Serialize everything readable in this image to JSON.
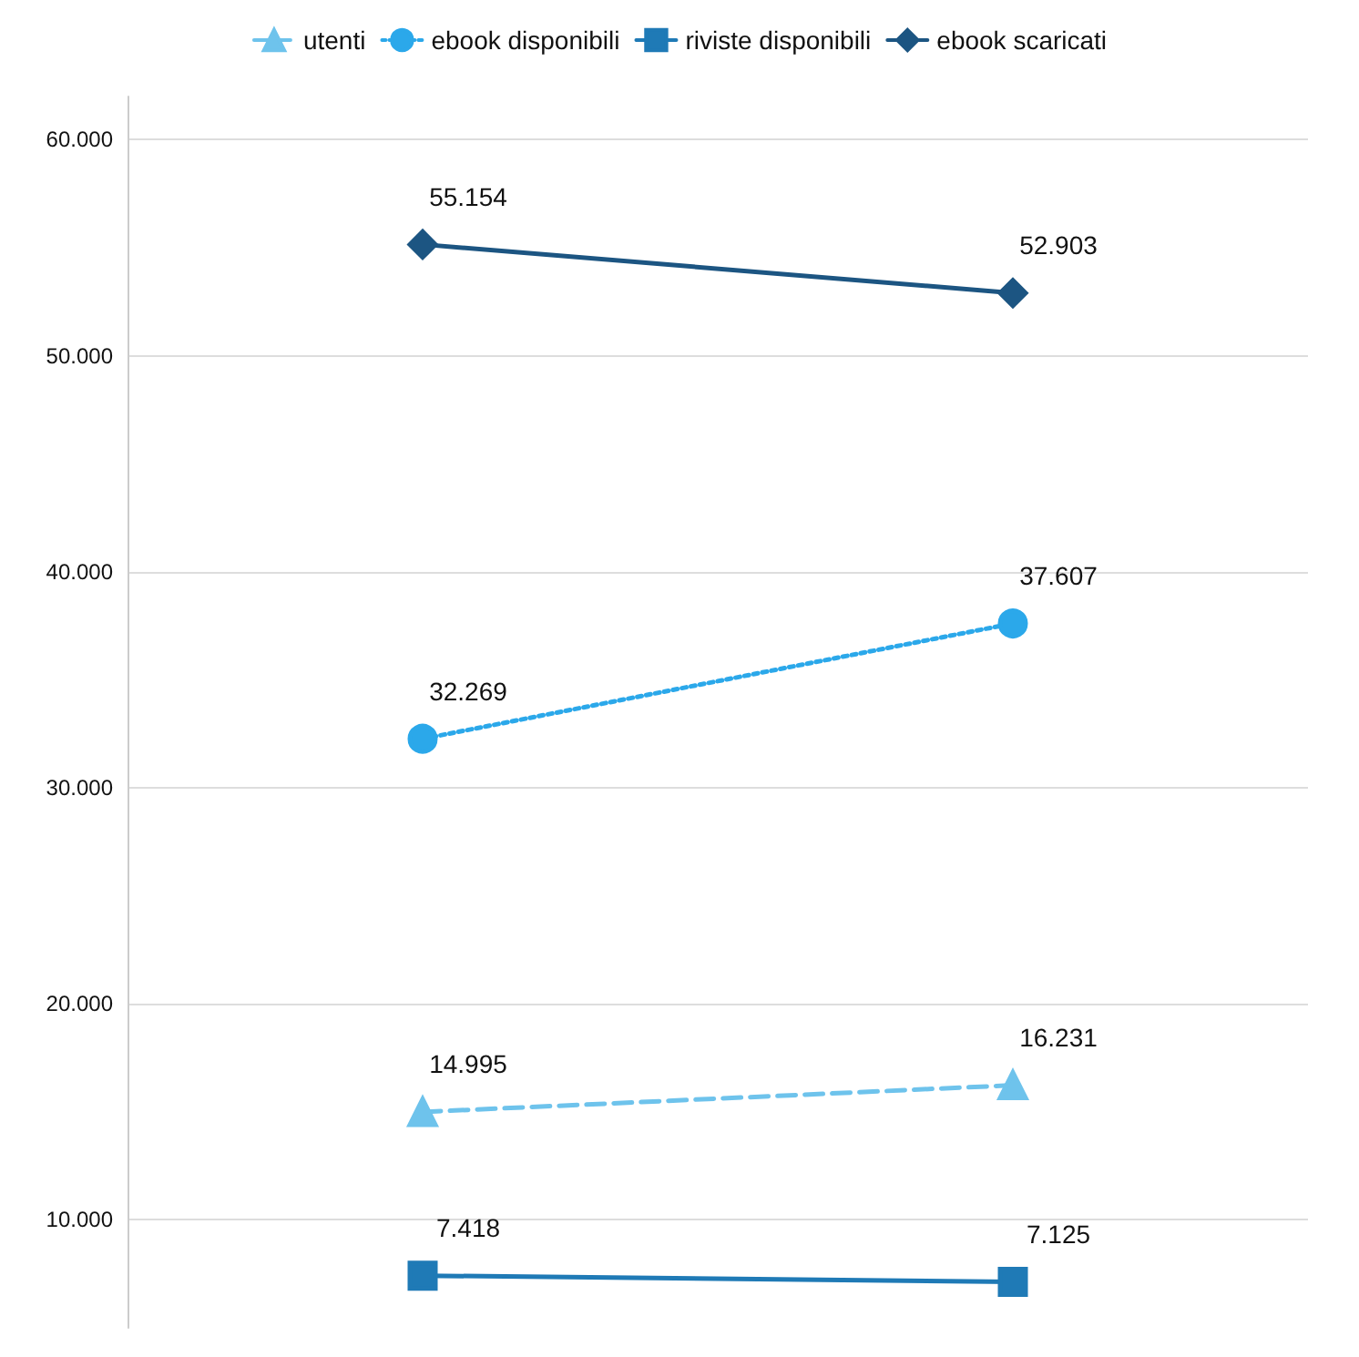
{
  "chart_data": {
    "type": "line",
    "categories": [
      null,
      null
    ],
    "ylim": [
      5000,
      62000
    ],
    "yticks": [
      {
        "value": 10000,
        "label": "10.000"
      },
      {
        "value": 20000,
        "label": "20.000"
      },
      {
        "value": 30000,
        "label": "30.000"
      },
      {
        "value": 40000,
        "label": "40.000"
      },
      {
        "value": 50000,
        "label": "50.000"
      },
      {
        "value": 60000,
        "label": "60.000"
      }
    ],
    "grid": "y",
    "legend": "top",
    "tick_labels": "y",
    "series": [
      {
        "name": "utenti",
        "color": "#6ec3ec",
        "values": [
          14995,
          16231
        ],
        "value_labels": [
          "14.995",
          "16.231"
        ],
        "marker": "triangle",
        "line_style": "dashed"
      },
      {
        "name": "ebook disponibili",
        "color": "#2ba8ea",
        "values": [
          32269,
          37607
        ],
        "value_labels": [
          "32.269",
          "37.607"
        ],
        "marker": "circle",
        "line_style": "dotted"
      },
      {
        "name": "riviste disponibili",
        "color": "#1f7ab6",
        "values": [
          7418,
          7125
        ],
        "value_labels": [
          "7.418",
          "7.125"
        ],
        "marker": "square",
        "line_style": "solid"
      },
      {
        "name": "ebook scaricati",
        "color": "#1c5582",
        "values": [
          55154,
          52903
        ],
        "value_labels": [
          "55.154",
          "52.903"
        ],
        "marker": "diamond",
        "line_style": "solid"
      }
    ]
  }
}
